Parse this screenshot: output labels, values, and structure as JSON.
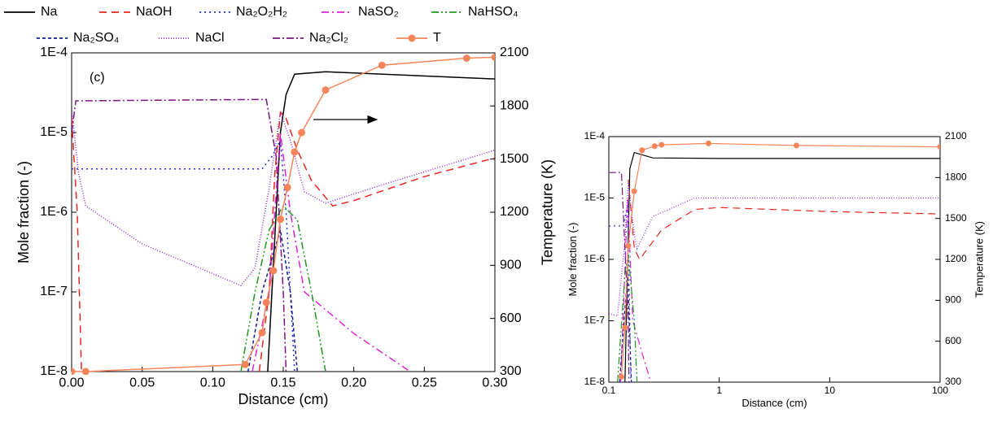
{
  "chart_data": [
    {
      "type": "line",
      "xlabel": "Distance (cm)",
      "ylabel": "Mole fraction (-)",
      "y2label": "Temperature (K)",
      "annotations": [
        "(c)"
      ],
      "xlim": [
        0,
        0.3
      ],
      "xticks": [
        {
          "value": 0,
          "label": "0.00"
        },
        {
          "value": 0.05,
          "label": "0.05"
        },
        {
          "value": 0.1,
          "label": "0.10"
        },
        {
          "value": 0.15,
          "label": "0.15"
        },
        {
          "value": 0.2,
          "label": "0.20"
        },
        {
          "value": 0.25,
          "label": "0.25"
        },
        {
          "value": 0.3,
          "label": "0.30"
        }
      ],
      "log_y": true,
      "ylim": [
        1e-08,
        0.0001
      ],
      "yticks": [
        {
          "value": 1e-08,
          "label": "1E-8"
        },
        {
          "value": 1e-07,
          "label": "1E-7"
        },
        {
          "value": 1e-06,
          "label": "1E-6"
        },
        {
          "value": 1e-05,
          "label": "1E-5"
        },
        {
          "value": 0.0001,
          "label": "1E-4"
        }
      ],
      "y2lim": [
        300,
        2100
      ],
      "y2ticks": [
        300,
        600,
        900,
        1200,
        1500,
        1800,
        2100
      ],
      "series": [
        {
          "name": "Na",
          "color": "#000000",
          "dash": "none",
          "x": [
            0.139,
            0.142,
            0.145,
            0.148,
            0.152,
            0.158,
            0.18,
            0.3
          ],
          "values": [
            1e-08,
            1e-07,
            1e-06,
            1e-05,
            3e-05,
            5.4e-05,
            5.8e-05,
            4.7e-05
          ]
        },
        {
          "name": "NaOH",
          "color": "#e8251f",
          "dash": "9,6",
          "x": [
            0,
            0.004,
            0.007,
            null,
            0.133,
            0.14,
            0.144,
            0.148,
            0.152,
            0.16,
            0.17,
            0.185,
            0.2,
            0.25,
            0.3
          ],
          "values": [
            1.5e-05,
            1e-06,
            1e-08,
            null,
            1e-08,
            1e-07,
            3e-06,
            1.8e-05,
            1.5e-05,
            6e-06,
            2.5e-06,
            1.2e-06,
            1.4e-06,
            2.8e-06,
            4.8e-06
          ]
        },
        {
          "name": "Na₂O₂H₂",
          "color": "#1f2fd9",
          "dash": "2,4",
          "x": [
            0,
            0.135,
            0.142,
            0.148,
            0.152,
            0.155,
            0.158
          ],
          "values": [
            3.5e-06,
            3.5e-06,
            5e-06,
            8e-06,
            1e-06,
            1e-07,
            1e-08
          ]
        },
        {
          "name": "NaSO₂",
          "color": "#e020d8",
          "dash": "9,4,2,4",
          "x": [
            0.128,
            0.14,
            0.148,
            0.155,
            0.165,
            0.2,
            0.24
          ],
          "values": [
            1e-08,
            1e-07,
            1e-05,
            1e-06,
            1e-07,
            3e-08,
            1e-08
          ]
        },
        {
          "name": "NaHSO₄",
          "color": "#1f9a1f",
          "dash": "9,3,2,3,2,3",
          "x": [
            0.12,
            0.13,
            0.14,
            0.15,
            0.16,
            0.17,
            0.18
          ],
          "values": [
            1e-08,
            1e-07,
            6e-07,
            1.2e-06,
            8e-07,
            1e-07,
            1e-08
          ]
        },
        {
          "name": "Na₂SO₄",
          "color": "#101a8c",
          "dash": "4,3",
          "x": [
            0.125,
            0.135,
            0.148,
            0.155,
            0.16
          ],
          "values": [
            1e-08,
            1e-07,
            6e-07,
            1e-07,
            1e-08
          ]
        },
        {
          "name": "NaCl",
          "color": "#8b2be0",
          "dash": "1,2",
          "x": [
            0,
            0.005,
            0.01,
            0.05,
            0.12,
            0.13,
            0.14,
            0.148,
            0.155,
            0.165,
            0.18,
            0.22,
            0.3
          ],
          "values": [
            2e-05,
            3e-06,
            1.2e-06,
            4e-07,
            1.2e-07,
            2e-07,
            2e-06,
            1.8e-05,
            8e-06,
            1.8e-06,
            1.3e-06,
            2.2e-06,
            6e-06
          ]
        },
        {
          "name": "Na₂Cl₂",
          "color": "#7a1280",
          "dash": "9,3,2,3",
          "x": [
            0,
            0.003,
            0.138,
            0.145,
            0.15,
            0.152
          ],
          "values": [
            1e-05,
            2.5e-05,
            2.6e-05,
            5e-06,
            1e-07,
            1e-08
          ]
        },
        {
          "name": "T",
          "color": "#f4845a",
          "dash": "none",
          "marker": true,
          "axis": "y2",
          "x": [
            0,
            0.01,
            0.123,
            0.135,
            0.138,
            0.143,
            0.148,
            0.153,
            0.158,
            0.163,
            0.18,
            0.22,
            0.28,
            0.3
          ],
          "values": [
            300,
            300,
            340,
            520,
            690,
            870,
            1160,
            1340,
            1540,
            1650,
            1890,
            2030,
            2070,
            2075
          ]
        }
      ]
    },
    {
      "type": "line",
      "xlabel": "Distance (cm)",
      "ylabel": "Mole fraction (-)",
      "y2label": "Temperature (K)",
      "log_x": true,
      "xlim": [
        0.1,
        100
      ],
      "xticks": [
        0.1,
        1,
        10,
        100
      ],
      "log_y": true,
      "ylim": [
        1e-08,
        0.0001
      ],
      "yticks": [
        {
          "value": 1e-08,
          "label": "1E-8"
        },
        {
          "value": 1e-07,
          "label": "1E-7"
        },
        {
          "value": 1e-06,
          "label": "1E-6"
        },
        {
          "value": 1e-05,
          "label": "1E-5"
        },
        {
          "value": 0.0001,
          "label": "1E-4"
        }
      ],
      "y2lim": [
        300,
        2100
      ],
      "y2ticks": [
        300,
        600,
        900,
        1200,
        1500,
        1800,
        2100
      ],
      "series": [
        {
          "color": "#000000",
          "dash": "none",
          "x": [
            0.14,
            0.155,
            0.17,
            0.25,
            1,
            100
          ],
          "values": [
            1e-08,
            3e-05,
            5.5e-05,
            4.5e-05,
            4.4e-05,
            4.4e-05
          ]
        },
        {
          "color": "#e8251f",
          "dash": "9,6",
          "x": [
            0.15,
            0.17,
            0.19,
            0.3,
            0.6,
            1,
            10,
            100
          ],
          "values": [
            2e-05,
            1.5e-06,
            1e-06,
            3e-06,
            6.5e-06,
            7e-06,
            6e-06,
            5.5e-06
          ]
        },
        {
          "color": "#1f2fd9",
          "dash": "2,4",
          "x": [
            0.1,
            0.135,
            0.148,
            0.155,
            0.158
          ],
          "values": [
            3.5e-06,
            3.5e-06,
            8e-06,
            1e-07,
            1e-08
          ]
        },
        {
          "color": "#e020d8",
          "dash": "9,4,2,4",
          "x": [
            0.128,
            0.148,
            0.165,
            0.2,
            0.24
          ],
          "values": [
            1e-08,
            1e-05,
            1e-07,
            3e-08,
            1e-08
          ]
        },
        {
          "color": "#1f9a1f",
          "dash": "9,3,2,3,2,3",
          "x": [
            0.12,
            0.14,
            0.15,
            0.17,
            0.18
          ],
          "values": [
            1e-08,
            6e-07,
            1.2e-06,
            1e-07,
            1e-08
          ]
        },
        {
          "color": "#101a8c",
          "dash": "4,3",
          "x": [
            0.125,
            0.148,
            0.16
          ],
          "values": [
            1e-08,
            6e-07,
            1e-08
          ]
        },
        {
          "color": "#8b2be0",
          "dash": "1,2",
          "x": [
            0.1,
            0.12,
            0.14,
            0.15,
            0.17,
            0.18,
            0.25,
            0.6,
            100
          ],
          "values": [
            1.3e-07,
            1.2e-07,
            2e-06,
            1.8e-05,
            2.5e-06,
            1.5e-06,
            5e-06,
            1e-05,
            1e-05
          ]
        },
        {
          "color": "#7a1280",
          "dash": "9,3,2,3",
          "x": [
            0.1,
            0.13,
            0.15,
            0.152
          ],
          "values": [
            2.6e-05,
            2.6e-05,
            1e-07,
            1e-08
          ]
        },
        {
          "color": "#f4845a",
          "dash": "none",
          "marker": true,
          "axis": "y2",
          "x": [
            0.13,
            0.14,
            0.15,
            0.17,
            0.2,
            0.26,
            0.3,
            0.8,
            5,
            100
          ],
          "values": [
            340,
            700,
            1300,
            1700,
            2000,
            2030,
            2040,
            2050,
            2035,
            2025
          ]
        }
      ]
    }
  ]
}
